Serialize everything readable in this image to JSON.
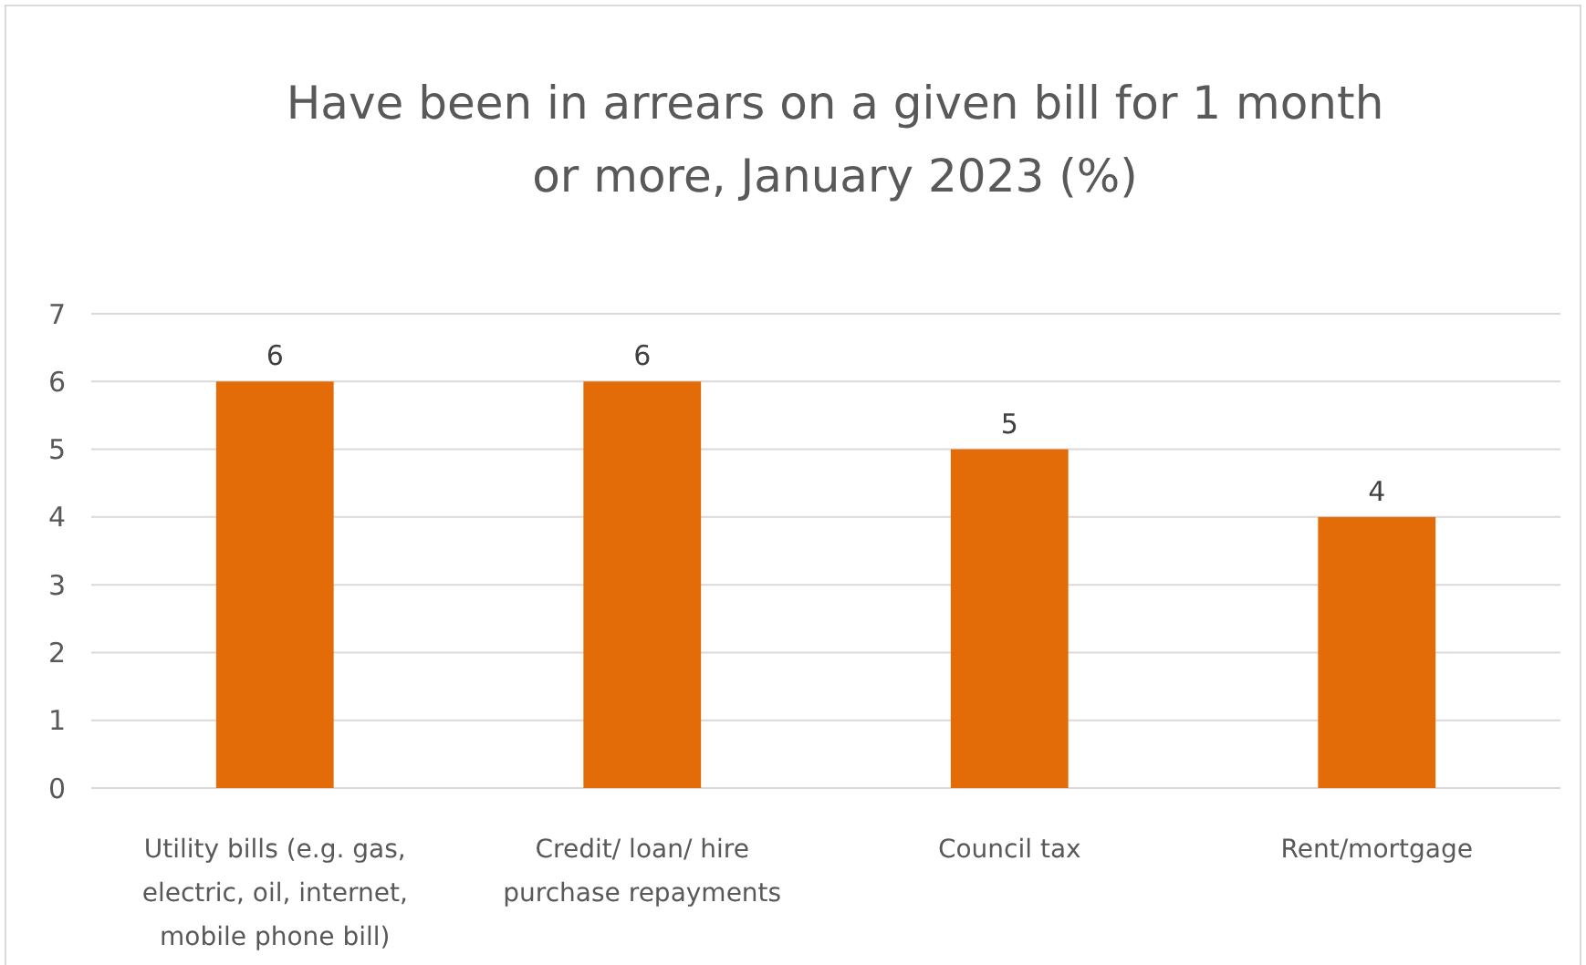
{
  "chart_data": {
    "type": "bar",
    "title": "Have been in arrears on a given bill for 1 month or more, January 2023 (%)",
    "categories": [
      "Utility bills (e.g. gas, electric, oil, internet, mobile phone bill)",
      "Credit/ loan/ hire purchase repayments",
      "Council tax",
      "Rent/mortgage"
    ],
    "values": [
      6,
      6,
      5,
      4
    ],
    "color": "#e36c09",
    "ylim": [
      0,
      7
    ],
    "yticks": [
      0,
      1,
      2,
      3,
      4,
      5,
      6,
      7
    ],
    "grid": "y",
    "data_labels": true
  }
}
